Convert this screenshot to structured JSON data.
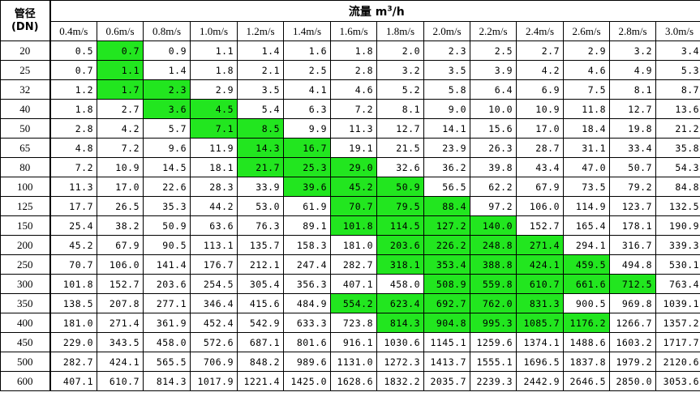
{
  "header": {
    "dn_label_line1": "管径",
    "dn_label_line2": "(DN)",
    "flow_label": "流量 m",
    "flow_sup": "3",
    "flow_unit_tail": "/h"
  },
  "velocities": [
    "0.4m/s",
    "0.6m/s",
    "0.8m/s",
    "1.0m/s",
    "1.2m/s",
    "1.4m/s",
    "1.6m/s",
    "1.8m/s",
    "2.0m/s",
    "2.2m/s",
    "2.4m/s",
    "2.6m/s",
    "2.8m/s",
    "3.0m/s"
  ],
  "highlight_color": "#22e61f",
  "rows": [
    {
      "dn": "20",
      "values": [
        "0.5",
        "0.7",
        "0.9",
        "1.1",
        "1.4",
        "1.6",
        "1.8",
        "2.0",
        "2.3",
        "2.5",
        "2.7",
        "2.9",
        "3.2",
        "3.4"
      ],
      "highlight": [
        1
      ]
    },
    {
      "dn": "25",
      "values": [
        "0.7",
        "1.1",
        "1.4",
        "1.8",
        "2.1",
        "2.5",
        "2.8",
        "3.2",
        "3.5",
        "3.9",
        "4.2",
        "4.6",
        "4.9",
        "5.3"
      ],
      "highlight": [
        1
      ]
    },
    {
      "dn": "32",
      "values": [
        "1.2",
        "1.7",
        "2.3",
        "2.9",
        "3.5",
        "4.1",
        "4.6",
        "5.2",
        "5.8",
        "6.4",
        "6.9",
        "7.5",
        "8.1",
        "8.7"
      ],
      "highlight": [
        1,
        2
      ]
    },
    {
      "dn": "40",
      "values": [
        "1.8",
        "2.7",
        "3.6",
        "4.5",
        "5.4",
        "6.3",
        "7.2",
        "8.1",
        "9.0",
        "10.0",
        "10.9",
        "11.8",
        "12.7",
        "13.6"
      ],
      "highlight": [
        2,
        3
      ]
    },
    {
      "dn": "50",
      "values": [
        "2.8",
        "4.2",
        "5.7",
        "7.1",
        "8.5",
        "9.9",
        "11.3",
        "12.7",
        "14.1",
        "15.6",
        "17.0",
        "18.4",
        "19.8",
        "21.2"
      ],
      "highlight": [
        3,
        4
      ]
    },
    {
      "dn": "65",
      "values": [
        "4.8",
        "7.2",
        "9.6",
        "11.9",
        "14.3",
        "16.7",
        "19.1",
        "21.5",
        "23.9",
        "26.3",
        "28.7",
        "31.1",
        "33.4",
        "35.8"
      ],
      "highlight": [
        4,
        5
      ]
    },
    {
      "dn": "80",
      "values": [
        "7.2",
        "10.9",
        "14.5",
        "18.1",
        "21.7",
        "25.3",
        "29.0",
        "32.6",
        "36.2",
        "39.8",
        "43.4",
        "47.0",
        "50.7",
        "54.3"
      ],
      "highlight": [
        4,
        5,
        6
      ]
    },
    {
      "dn": "100",
      "values": [
        "11.3",
        "17.0",
        "22.6",
        "28.3",
        "33.9",
        "39.6",
        "45.2",
        "50.9",
        "56.5",
        "62.2",
        "67.9",
        "73.5",
        "79.2",
        "84.8"
      ],
      "highlight": [
        5,
        6,
        7
      ]
    },
    {
      "dn": "125",
      "values": [
        "17.7",
        "26.5",
        "35.3",
        "44.2",
        "53.0",
        "61.9",
        "70.7",
        "79.5",
        "88.4",
        "97.2",
        "106.0",
        "114.9",
        "123.7",
        "132.5"
      ],
      "highlight": [
        6,
        7,
        8
      ]
    },
    {
      "dn": "150",
      "values": [
        "25.4",
        "38.2",
        "50.9",
        "63.6",
        "76.3",
        "89.1",
        "101.8",
        "114.5",
        "127.2",
        "140.0",
        "152.7",
        "165.4",
        "178.1",
        "190.9"
      ],
      "highlight": [
        6,
        7,
        8,
        9
      ]
    },
    {
      "dn": "200",
      "values": [
        "45.2",
        "67.9",
        "90.5",
        "113.1",
        "135.7",
        "158.3",
        "181.0",
        "203.6",
        "226.2",
        "248.8",
        "271.4",
        "294.1",
        "316.7",
        "339.3"
      ],
      "highlight": [
        7,
        8,
        9,
        10
      ]
    },
    {
      "dn": "250",
      "values": [
        "70.7",
        "106.0",
        "141.4",
        "176.7",
        "212.1",
        "247.4",
        "282.7",
        "318.1",
        "353.4",
        "388.8",
        "424.1",
        "459.5",
        "494.8",
        "530.1"
      ],
      "highlight": [
        7,
        8,
        9,
        10,
        11
      ]
    },
    {
      "dn": "300",
      "values": [
        "101.8",
        "152.7",
        "203.6",
        "254.5",
        "305.4",
        "356.3",
        "407.1",
        "458.0",
        "508.9",
        "559.8",
        "610.7",
        "661.6",
        "712.5",
        "763.4"
      ],
      "highlight": [
        8,
        9,
        10,
        11,
        12
      ]
    },
    {
      "dn": "350",
      "values": [
        "138.5",
        "207.8",
        "277.1",
        "346.4",
        "415.6",
        "484.9",
        "554.2",
        "623.4",
        "692.7",
        "762.0",
        "831.3",
        "900.5",
        "969.8",
        "1039.1"
      ],
      "highlight": [
        6,
        7,
        8,
        9,
        10
      ]
    },
    {
      "dn": "400",
      "values": [
        "181.0",
        "271.4",
        "361.9",
        "452.4",
        "542.9",
        "633.3",
        "723.8",
        "814.3",
        "904.8",
        "995.3",
        "1085.7",
        "1176.2",
        "1266.7",
        "1357.2"
      ],
      "highlight": [
        7,
        8,
        9,
        10,
        11
      ]
    },
    {
      "dn": "450",
      "values": [
        "229.0",
        "343.5",
        "458.0",
        "572.6",
        "687.1",
        "801.6",
        "916.1",
        "1030.6",
        "1145.1",
        "1259.6",
        "1374.1",
        "1488.6",
        "1603.2",
        "1717.7"
      ],
      "highlight": []
    },
    {
      "dn": "500",
      "values": [
        "282.7",
        "424.1",
        "565.5",
        "706.9",
        "848.2",
        "989.6",
        "1131.0",
        "1272.3",
        "1413.7",
        "1555.1",
        "1696.5",
        "1837.8",
        "1979.2",
        "2120.6"
      ],
      "highlight": []
    },
    {
      "dn": "600",
      "values": [
        "407.1",
        "610.7",
        "814.3",
        "1017.9",
        "1221.4",
        "1425.0",
        "1628.6",
        "1832.2",
        "2035.7",
        "2239.3",
        "2442.9",
        "2646.5",
        "2850.0",
        "3053.6"
      ],
      "highlight": []
    }
  ]
}
